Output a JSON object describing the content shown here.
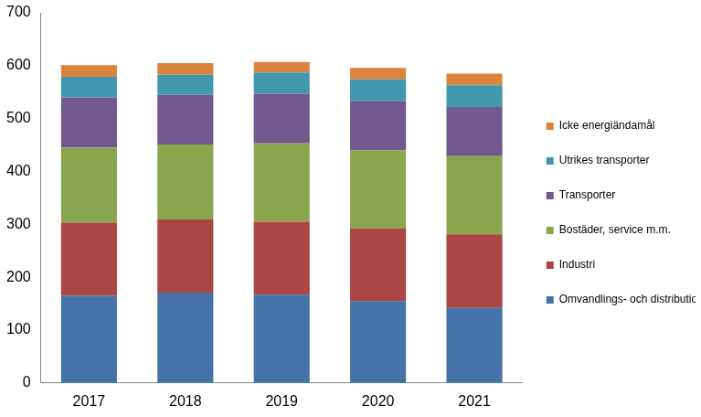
{
  "chart_data": {
    "type": "bar",
    "stacked": true,
    "grid": false,
    "legend": "right",
    "categories": [
      "2017",
      "2018",
      "2019",
      "2020",
      "2021"
    ],
    "ylim": [
      0,
      700
    ],
    "yticks": [
      0,
      100,
      200,
      300,
      400,
      500,
      600,
      700
    ],
    "series": [
      {
        "name": "Omvandlings- och distributionsförluster",
        "color": "#4572A7",
        "values": [
          165,
          171,
          167,
          155,
          142
        ]
      },
      {
        "name": "Industri",
        "color": "#AA4643",
        "values": [
          138,
          138,
          138,
          137,
          139
        ]
      },
      {
        "name": "Bostäder, service m.m.",
        "color": "#89A54E",
        "values": [
          142,
          142,
          148,
          148,
          148
        ]
      },
      {
        "name": "Transporter",
        "color": "#71588F",
        "values": [
          95,
          94,
          94,
          93,
          93
        ]
      },
      {
        "name": "Utrikes transporter",
        "color": "#4198AF",
        "values": [
          39,
          38,
          40,
          41,
          41
        ]
      },
      {
        "name": "Icke energiändamål",
        "color": "#DB843D",
        "values": [
          22,
          22,
          20,
          22,
          22
        ]
      }
    ]
  }
}
